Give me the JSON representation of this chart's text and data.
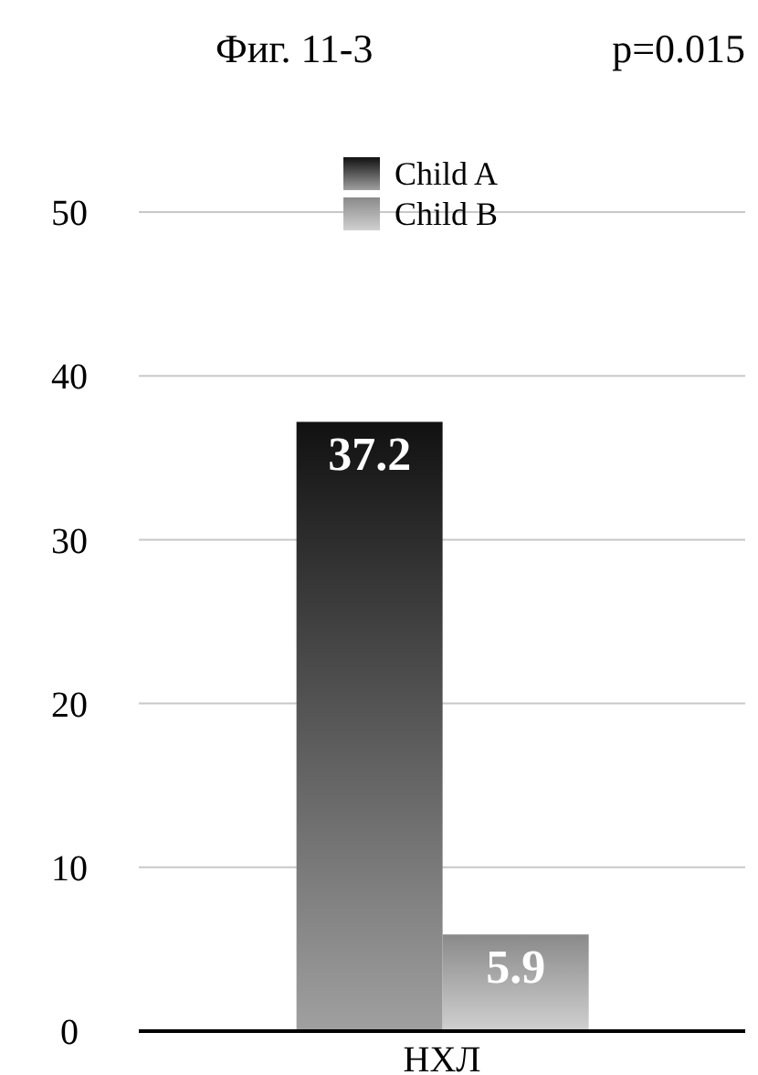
{
  "chart_data": {
    "type": "bar",
    "title": "Фиг. 11-3",
    "annotations": [
      "p=0.015"
    ],
    "categories": [
      "НХЛ"
    ],
    "series": [
      {
        "name": "Child A",
        "color": "#111111",
        "values": [
          37.2
        ]
      },
      {
        "name": "Child B",
        "color": "#8a8a8a",
        "values": [
          5.9
        ]
      }
    ],
    "ylim": [
      0,
      50
    ],
    "yticks": [
      0,
      10,
      20,
      30,
      40,
      50
    ],
    "grid": "y",
    "legend": "top",
    "data_labels": true
  }
}
